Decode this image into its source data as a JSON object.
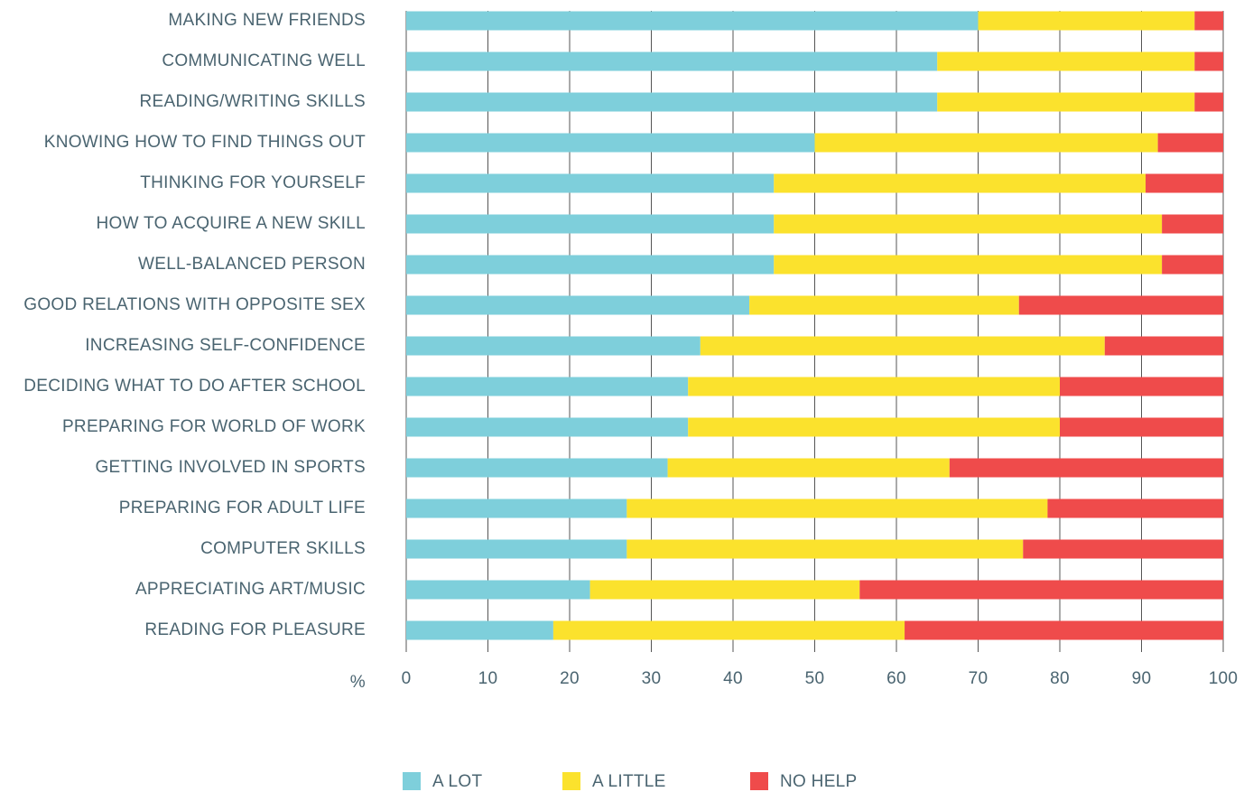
{
  "chart_data": {
    "type": "stacked_bar_horizontal",
    "x_label": "%",
    "categories": [
      "MAKING NEW FRIENDS",
      "COMMUNICATING WELL",
      "READING/WRITING SKILLS",
      "KNOWING HOW TO FIND THINGS OUT",
      "THINKING FOR YOURSELF",
      "HOW TO ACQUIRE A NEW SKILL",
      "WELL-BALANCED PERSON",
      "GOOD RELATIONS WITH OPPOSITE SEX",
      "INCREASING SELF-CONFIDENCE",
      "DECIDING WHAT TO DO AFTER SCHOOL",
      "PREPARING FOR WORLD OF WORK",
      "GETTING INVOLVED IN SPORTS",
      "PREPARING FOR ADULT LIFE",
      "COMPUTER SKILLS",
      "APPRECIATING ART/MUSIC",
      "READING FOR PLEASURE"
    ],
    "series": [
      {
        "name": "A LOT",
        "color": "#7ecfdb",
        "values": [
          70,
          65,
          65,
          50,
          45,
          45,
          45,
          42,
          36,
          34.5,
          34.5,
          32,
          27,
          27,
          22.5,
          18
        ]
      },
      {
        "name": "A LITTLE",
        "color": "#fbe22d",
        "values": [
          26.5,
          31.5,
          31.5,
          42,
          45.5,
          47.5,
          47.5,
          33,
          49.5,
          45.5,
          45.5,
          34.5,
          51.5,
          48.5,
          33,
          43
        ]
      },
      {
        "name": "NO HELP",
        "color": "#ef4b4b",
        "values": [
          3.5,
          3.5,
          3.5,
          8,
          9.5,
          7.5,
          7.5,
          25,
          14.5,
          20,
          20,
          33.5,
          21.5,
          24.5,
          44.5,
          39
        ]
      }
    ],
    "xlim": [
      0,
      100
    ],
    "xticks": [
      0,
      10,
      20,
      30,
      40,
      50,
      60,
      70,
      80,
      90,
      100
    ],
    "grid": true
  }
}
